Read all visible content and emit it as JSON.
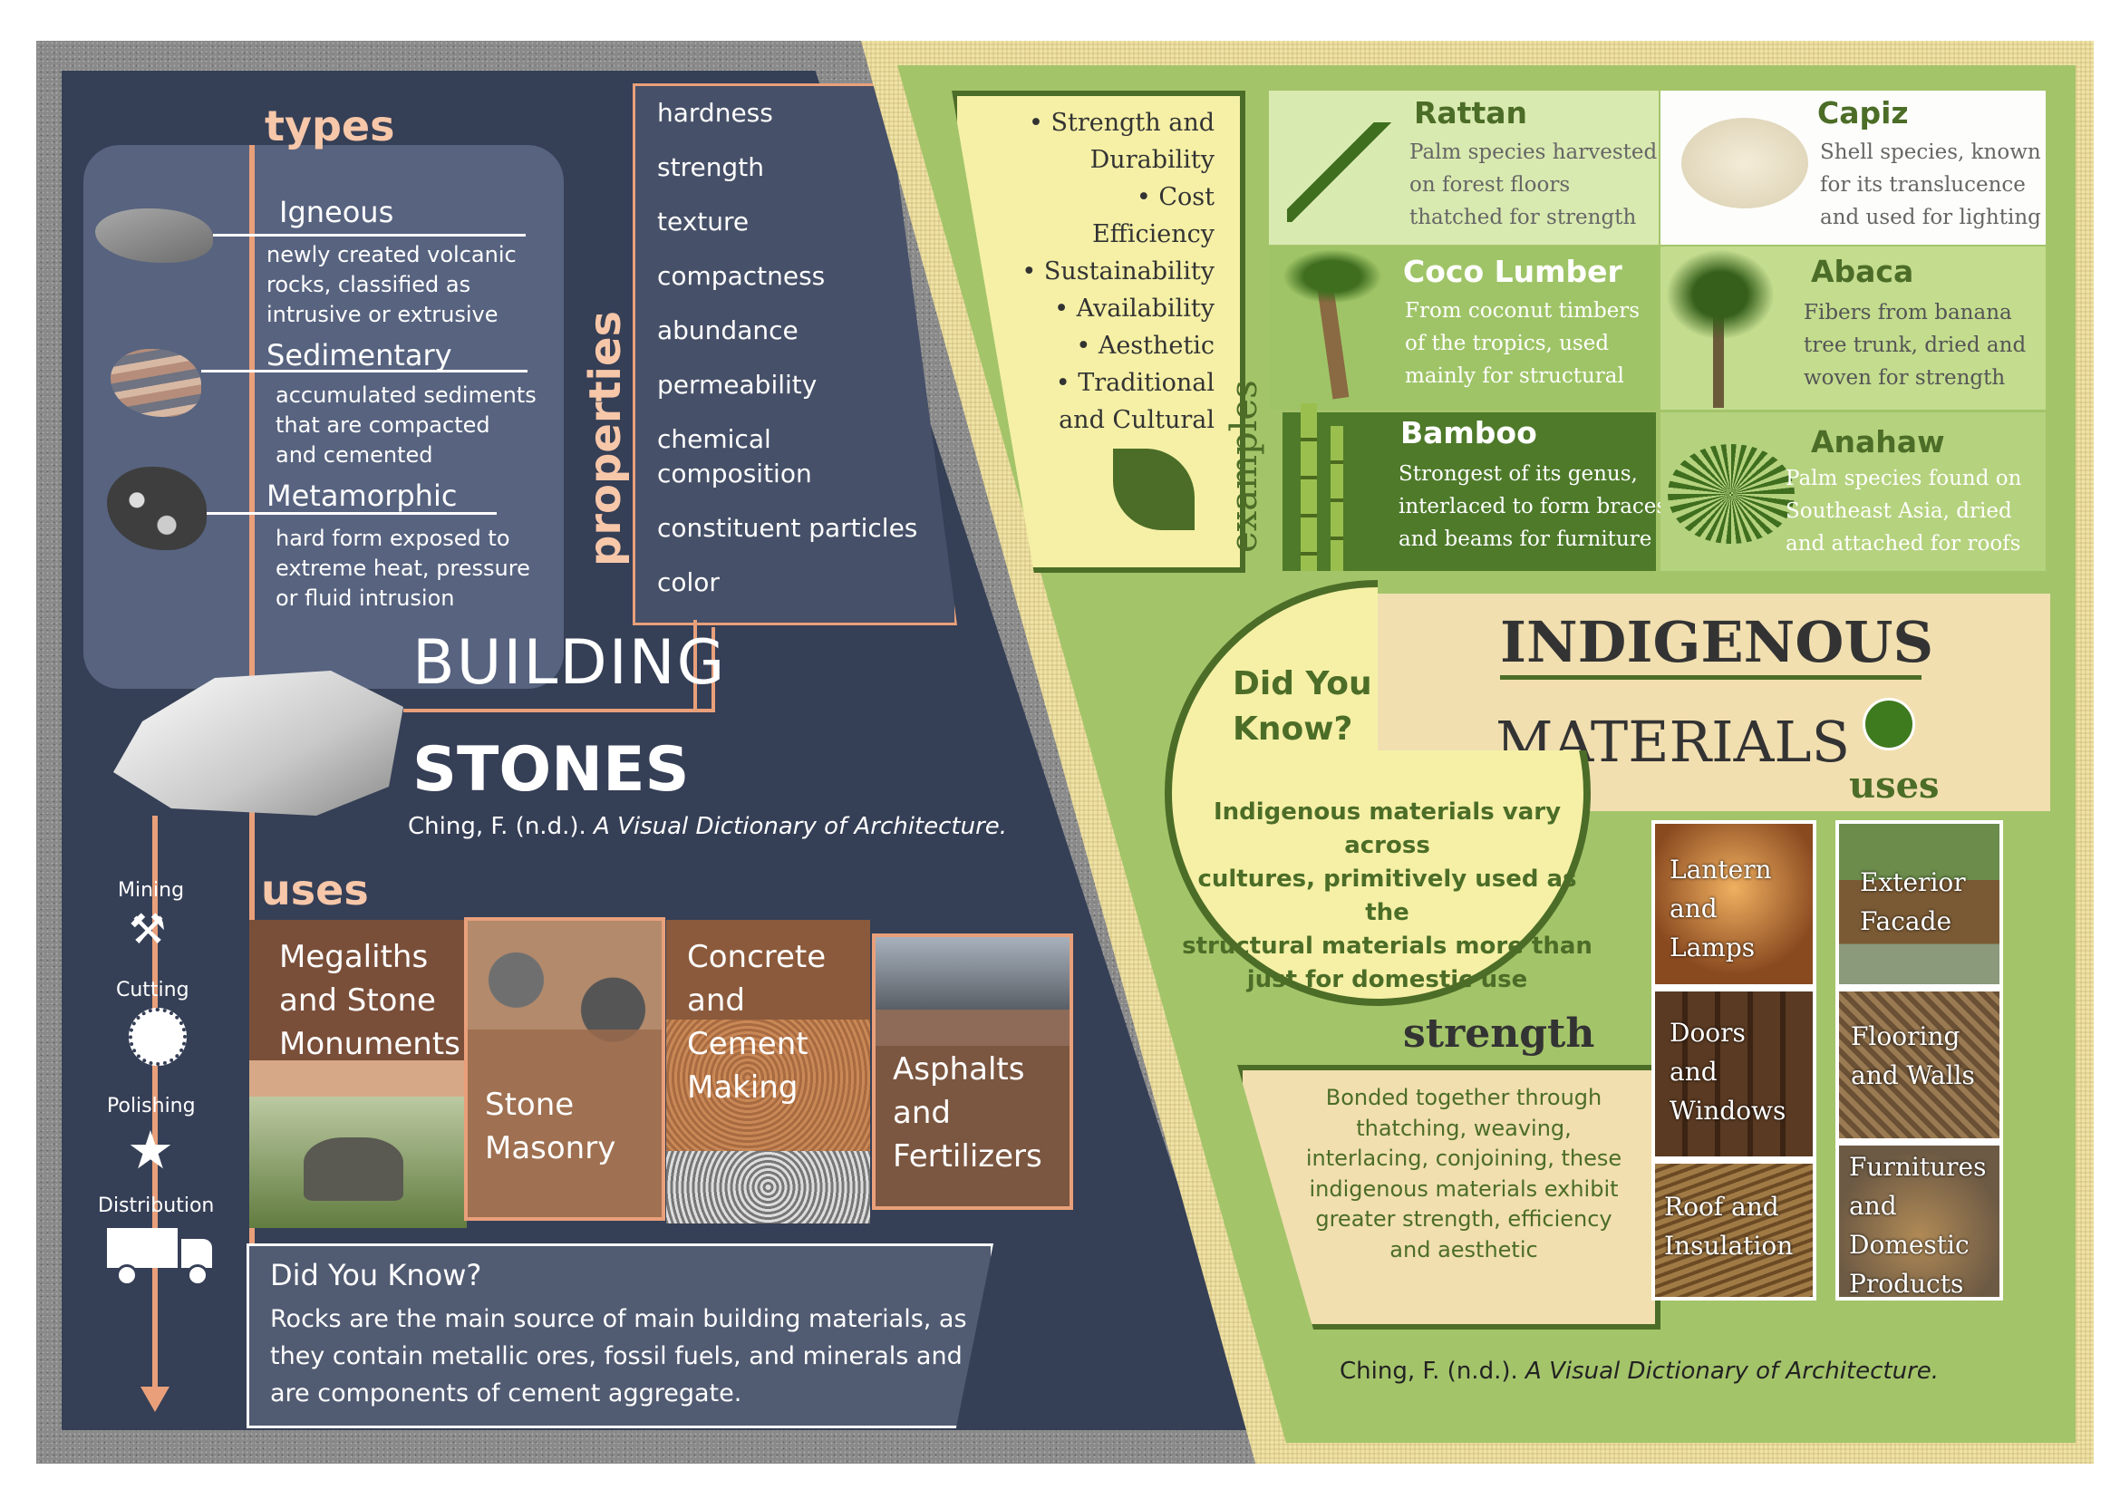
{
  "left": {
    "types_heading": "types",
    "types": [
      {
        "name": "Igneous",
        "desc_lines": [
          "newly created volcanic",
          "rocks, classified as",
          "intrusive or extrusive"
        ]
      },
      {
        "name": "Sedimentary",
        "desc_lines": [
          "accumulated sediments",
          "that are compacted",
          "and cemented"
        ]
      },
      {
        "name": "Metamorphic",
        "desc_lines": [
          "hard form exposed to",
          "extreme heat, pressure",
          "or fluid intrusion"
        ]
      }
    ],
    "properties_heading": "properties",
    "properties": [
      "hardness",
      "strength",
      "texture",
      "compactness",
      "abundance",
      "permeability",
      "chemical",
      "composition",
      "constituent particles",
      "color"
    ],
    "title_line1": "BUILDING",
    "title_line2": "STONES",
    "citation_plain": "Ching, F. (n.d.). ",
    "citation_italic": "A Visual Dictionary of Architecture.",
    "process": [
      "Mining",
      "Cutting",
      "Polishing",
      "Distribution"
    ],
    "uses_heading": "uses",
    "uses": [
      {
        "lines": [
          "Megaliths",
          "and Stone",
          "Monuments"
        ]
      },
      {
        "lines": [
          "Stone",
          "Masonry"
        ]
      },
      {
        "lines": [
          "Concrete",
          "and",
          "Cement",
          "Making"
        ]
      },
      {
        "lines": [
          "Asphalts",
          "and",
          "Fertilizers"
        ]
      }
    ],
    "did_you_know": {
      "title": "Did You Know?",
      "lines": [
        "Rocks are the main source of main building materials, as",
        "they contain metallic ores, fossil fuels, and minerals and",
        "are components of cement aggregate."
      ]
    }
  },
  "right": {
    "qualities": [
      "Strength and",
      "Durability",
      "Cost",
      "Efficiency",
      "Sustainability",
      "Availability",
      "Aesthetic",
      "Traditional",
      "and Cultural"
    ],
    "examples_heading": "examples",
    "examples": [
      {
        "name": "Rattan",
        "lines": [
          "Palm species harvested",
          "on forest floors",
          "thatched for strength"
        ]
      },
      {
        "name": "Capiz",
        "lines": [
          "Shell species, known",
          "for its translucence",
          "and used for lighting"
        ]
      },
      {
        "name": "Coco Lumber",
        "lines": [
          "From coconut timbers",
          "of the tropics, used",
          "mainly for structural"
        ]
      },
      {
        "name": "Abaca",
        "lines": [
          "Fibers from banana",
          "tree trunk, dried and",
          "woven for strength"
        ]
      },
      {
        "name": "Bamboo",
        "lines": [
          "Strongest of its genus,",
          "interlaced to form braces",
          "and beams for furniture"
        ]
      },
      {
        "name": "Anahaw",
        "lines": [
          "Palm species found on",
          "Southeast Asia, dried",
          "and attached for roofs"
        ]
      }
    ],
    "title_line1": "INDIGENOUS",
    "title_line2": "MATERIALS",
    "did_you_know": {
      "title_line1": "Did You",
      "title_line2": "Know?",
      "lines": [
        "Indigenous materials vary across",
        "cultures, primitively used as the",
        "structural materials more than",
        "just for domestic use"
      ]
    },
    "uses_heading": "uses",
    "uses_col1": [
      {
        "lines": [
          "Lantern",
          "and",
          "Lamps"
        ]
      },
      {
        "lines": [
          "Doors",
          "and",
          "Windows"
        ]
      },
      {
        "lines": [
          "Roof and",
          "Insulation"
        ]
      }
    ],
    "uses_col2": [
      {
        "lines": [
          "Exterior",
          "Facade"
        ]
      },
      {
        "lines": [
          "Flooring",
          "and Walls"
        ]
      },
      {
        "lines": [
          "Furnitures",
          "and",
          "Domestic",
          "Products"
        ]
      }
    ],
    "strength_heading": "strength",
    "strength_lines": [
      "Bonded together through",
      "thatching, weaving,",
      "interlacing, conjoining, these",
      "indigenous materials exhibit",
      "greater strength, efficiency",
      "and aesthetic"
    ],
    "citation_plain": "Ching, F. (n.d.). ",
    "citation_italic": "A Visual Dictionary of Architecture."
  }
}
